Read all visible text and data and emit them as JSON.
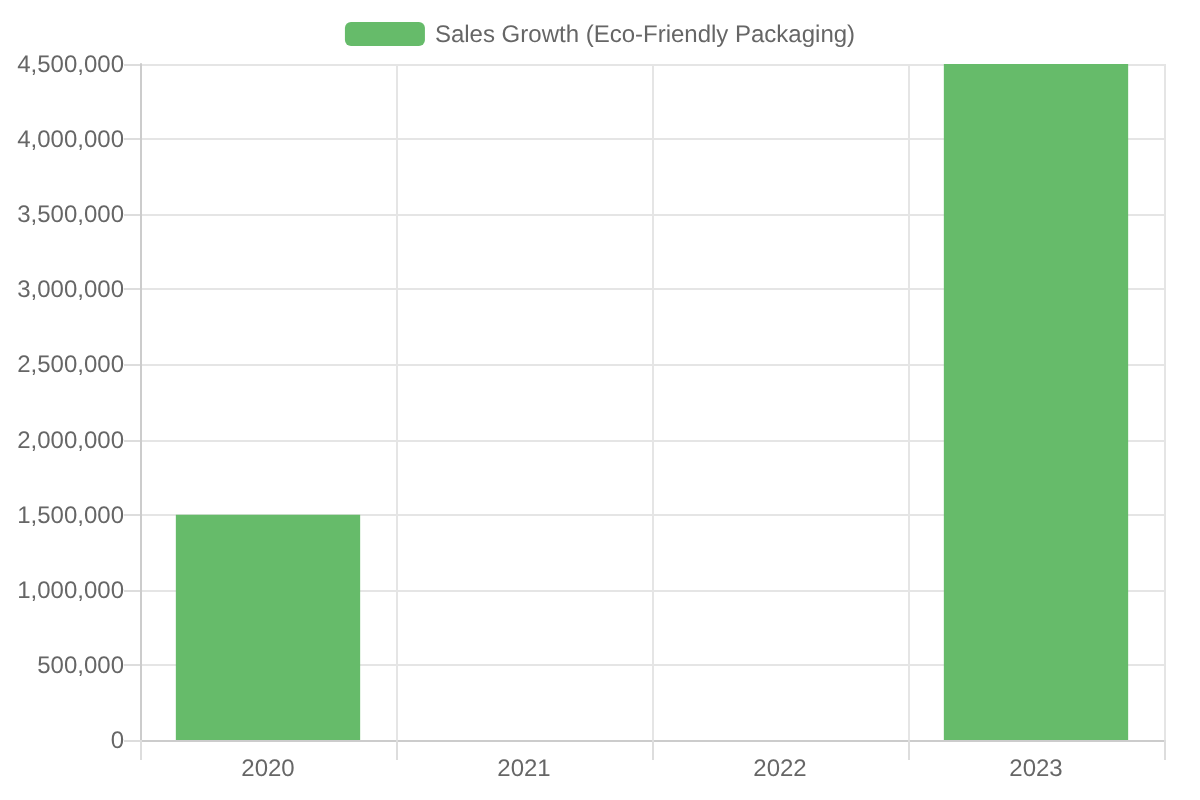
{
  "chart_data": {
    "type": "bar",
    "categories": [
      "2020",
      "2021",
      "2022",
      "2023"
    ],
    "series": [
      {
        "name": "Sales Growth (Eco-Friendly Packaging)",
        "color": "#66bb6a",
        "values": [
          1500000,
          null,
          null,
          4500000
        ]
      }
    ],
    "ylim": [
      0,
      4500000
    ],
    "yticks": [
      0,
      {
        "value": 500000,
        "label": "500,000"
      },
      {
        "value": 1000000,
        "label": "1,000,000"
      },
      {
        "value": 1500000,
        "label": "1,500,000"
      },
      {
        "value": 2000000,
        "label": "2,000,000"
      },
      {
        "value": 2500000,
        "label": "2,500,000"
      },
      {
        "value": 3000000,
        "label": "3,000,000"
      },
      {
        "value": 3500000,
        "label": "3,500,000"
      },
      {
        "value": 4000000,
        "label": "4,000,000"
      },
      {
        "value": 4500000,
        "label": "4,500,000"
      }
    ],
    "grid": true,
    "legend": "top"
  }
}
